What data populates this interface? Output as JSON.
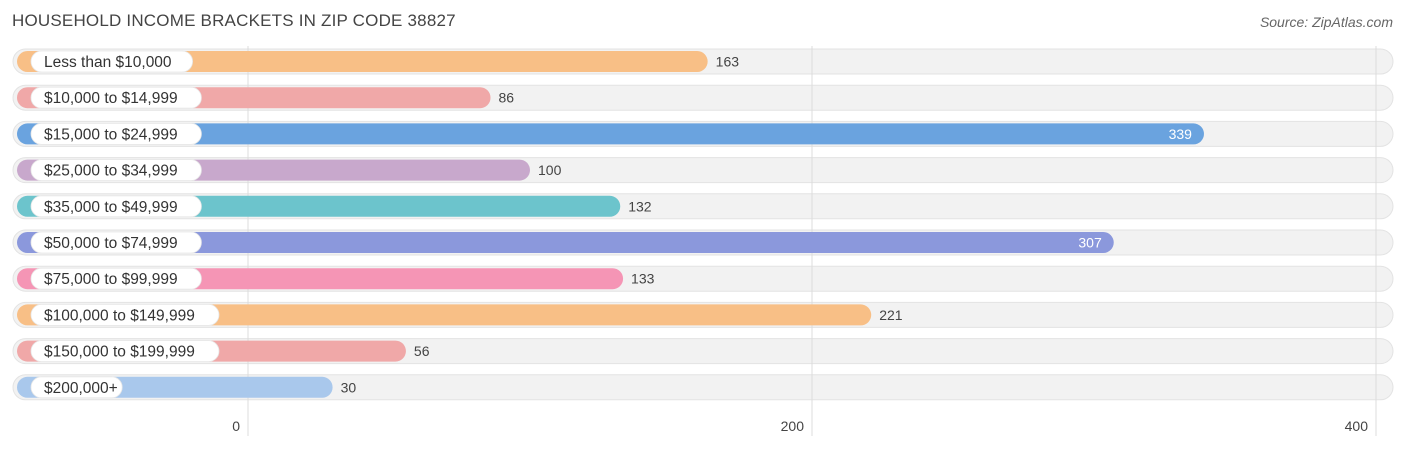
{
  "header": {
    "title": "HOUSEHOLD INCOME BRACKETS IN ZIP CODE 38827",
    "source": "Source: ZipAtlas.com"
  },
  "chart_data": {
    "type": "bar",
    "orientation": "horizontal",
    "title": "HOUSEHOLD INCOME BRACKETS IN ZIP CODE 38827",
    "xlabel": "",
    "ylabel": "",
    "xlim": [
      0,
      400
    ],
    "ticks": [
      0,
      200,
      400
    ],
    "grid": true,
    "categories": [
      "Less than $10,000",
      "$10,000 to $14,999",
      "$15,000 to $24,999",
      "$25,000 to $34,999",
      "$35,000 to $49,999",
      "$50,000 to $74,999",
      "$75,000 to $99,999",
      "$100,000 to $149,999",
      "$150,000 to $199,999",
      "$200,000+"
    ],
    "values": [
      163,
      86,
      339,
      100,
      132,
      307,
      133,
      221,
      56,
      30
    ],
    "colors": [
      "#f8bf86",
      "#f0a8a8",
      "#6aa3df",
      "#c8a8cc",
      "#6cc4cc",
      "#8b98dc",
      "#f595b5",
      "#f8bf86",
      "#f0a8a8",
      "#a9c8ec"
    ]
  }
}
